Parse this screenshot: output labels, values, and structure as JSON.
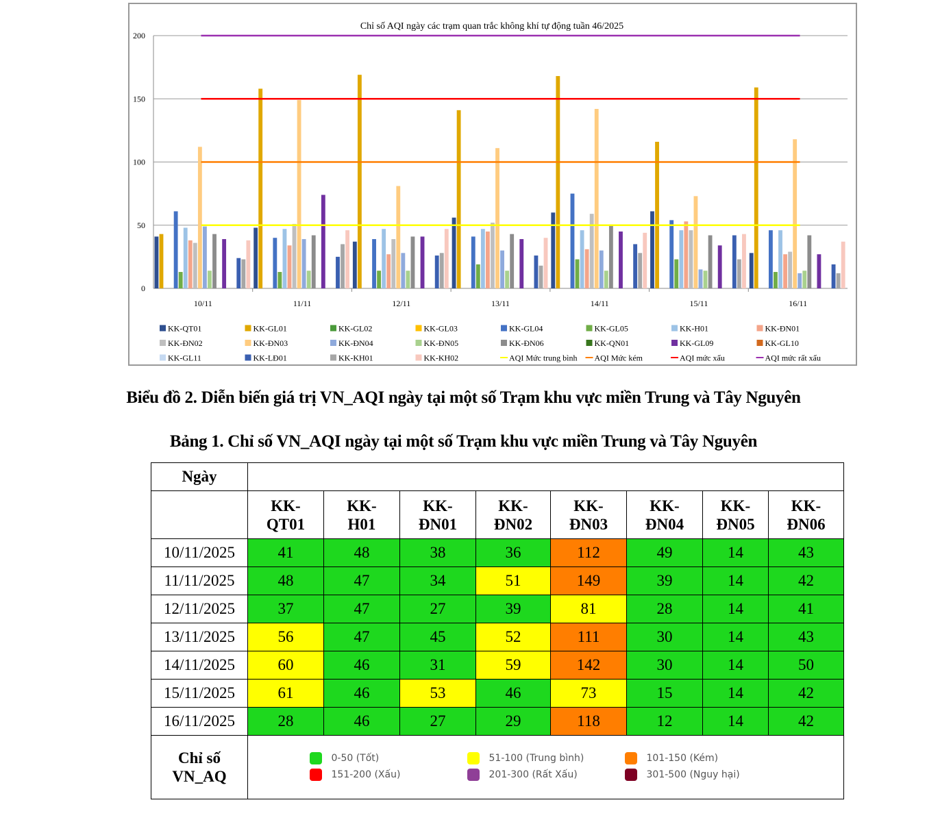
{
  "chart_data": {
    "type": "bar",
    "title": "Chỉ số AQI ngày các trạm quan trắc không khí tự động tuần 46/2025",
    "categories": [
      "10/11",
      "11/11",
      "12/11",
      "13/11",
      "14/11",
      "15/11",
      "16/11"
    ],
    "ylim": [
      0,
      200
    ],
    "yticks": [
      0,
      50,
      100,
      150,
      200
    ],
    "grid": true,
    "legend_position": "bottom",
    "series": [
      {
        "name": "KK-QT01",
        "color": "#2f4f8f",
        "values": [
          41,
          48,
          37,
          56,
          60,
          61,
          28
        ]
      },
      {
        "name": "KK-GL01",
        "color": "#e0a800",
        "values": [
          43,
          158,
          169,
          141,
          168,
          116,
          159
        ]
      },
      {
        "name": "KK-GL02",
        "color": "#4a9a3a",
        "values": [
          null,
          null,
          null,
          null,
          null,
          null,
          null
        ]
      },
      {
        "name": "KK-GL03",
        "color": "#ffc000",
        "values": [
          null,
          null,
          null,
          null,
          null,
          null,
          null
        ]
      },
      {
        "name": "KK-GL04",
        "color": "#4472c4",
        "values": [
          61,
          40,
          39,
          41,
          75,
          54,
          46
        ]
      },
      {
        "name": "KK-GL05",
        "color": "#70ad47",
        "values": [
          13,
          13,
          14,
          19,
          23,
          23,
          13
        ]
      },
      {
        "name": "KK-H01",
        "color": "#9dc3e6",
        "values": [
          48,
          47,
          47,
          47,
          46,
          46,
          46
        ]
      },
      {
        "name": "KK-ĐN01",
        "color": "#f4a58a",
        "values": [
          38,
          34,
          27,
          45,
          31,
          53,
          27
        ]
      },
      {
        "name": "KK-ĐN02",
        "color": "#bfbfbf",
        "values": [
          36,
          51,
          39,
          52,
          59,
          46,
          29
        ]
      },
      {
        "name": "KK-ĐN03",
        "color": "#ffcc80",
        "values": [
          112,
          149,
          81,
          111,
          142,
          73,
          118
        ]
      },
      {
        "name": "KK-ĐN04",
        "color": "#8faadc",
        "values": [
          49,
          39,
          28,
          30,
          30,
          15,
          12
        ]
      },
      {
        "name": "KK-ĐN05",
        "color": "#a9d18e",
        "values": [
          14,
          14,
          14,
          14,
          14,
          14,
          14
        ]
      },
      {
        "name": "KK-ĐN06",
        "color": "#8c8c8c",
        "values": [
          43,
          42,
          41,
          43,
          50,
          42,
          42
        ]
      },
      {
        "name": "KK-QN01",
        "color": "#38761d",
        "values": [
          null,
          null,
          null,
          null,
          null,
          null,
          null
        ]
      },
      {
        "name": "KK-GL09",
        "color": "#7030a0",
        "values": [
          39,
          74,
          41,
          39,
          45,
          34,
          27
        ]
      },
      {
        "name": "KK-GL10",
        "color": "#d2691e",
        "values": [
          null,
          null,
          null,
          null,
          null,
          null,
          null
        ]
      },
      {
        "name": "KK-GL11",
        "color": "#c5d9f1",
        "values": [
          null,
          null,
          null,
          null,
          null,
          null,
          null
        ]
      },
      {
        "name": "KK-LĐ01",
        "color": "#3a5fb0",
        "values": [
          24,
          25,
          26,
          26,
          35,
          42,
          19
        ]
      },
      {
        "name": "KK-KH01",
        "color": "#a6a6a6",
        "values": [
          23,
          35,
          28,
          18,
          28,
          23,
          12
        ]
      },
      {
        "name": "KK-KH02",
        "color": "#f8c8be",
        "values": [
          38,
          46,
          47,
          40,
          44,
          43,
          37
        ]
      }
    ],
    "thresholds": [
      {
        "name": "AQI Mức trung bình",
        "value": 50,
        "color": "#ffff00"
      },
      {
        "name": "AQI Mức kém",
        "value": 100,
        "color": "#ff7f00"
      },
      {
        "name": "AQI mức xấu",
        "value": 150,
        "color": "#ff0000"
      },
      {
        "name": "AQI mức rất xấu",
        "value": 200,
        "color": "#9b30b0"
      }
    ]
  },
  "captions": {
    "figure": "Biểu đồ 2. Diễn biến giá trị VN_AQI ngày tại một số Trạm khu vực miền Trung và Tây Nguyên",
    "table": "Bảng 1. Chỉ số VN_AQI ngày tại một số Trạm khu vực miền Trung và Tây Nguyên"
  },
  "table": {
    "date_header": "Ngày",
    "stations": [
      "KK-\nQT01",
      "KK-\nH01",
      "KK-\nĐN01",
      "KK-\nĐN02",
      "KK-\nĐN03",
      "KK-\nĐN04",
      "KK-\nĐN05",
      "KK-\nĐN06"
    ],
    "rows": [
      {
        "date": "10/11/2025",
        "values": [
          41,
          48,
          38,
          36,
          112,
          49,
          14,
          43
        ]
      },
      {
        "date": "11/11/2025",
        "values": [
          48,
          47,
          34,
          51,
          149,
          39,
          14,
          42
        ]
      },
      {
        "date": "12/11/2025",
        "values": [
          37,
          47,
          27,
          39,
          81,
          28,
          14,
          41
        ]
      },
      {
        "date": "13/11/2025",
        "values": [
          56,
          47,
          45,
          52,
          111,
          30,
          14,
          43
        ]
      },
      {
        "date": "14/11/2025",
        "values": [
          60,
          46,
          31,
          59,
          142,
          30,
          14,
          50
        ]
      },
      {
        "date": "15/11/2025",
        "values": [
          61,
          46,
          53,
          46,
          73,
          15,
          14,
          42
        ]
      },
      {
        "date": "16/11/2025",
        "values": [
          28,
          46,
          27,
          29,
          118,
          12,
          14,
          42
        ]
      }
    ],
    "legend_label": "Chỉ số\nVN_AQ",
    "legend": [
      {
        "label": "0-50 (Tốt)",
        "color": "#1ed81e"
      },
      {
        "label": "51-100 (Trung bình)",
        "color": "#ffff00"
      },
      {
        "label": "101-150 (Kém)",
        "color": "#ff7e00"
      },
      {
        "label": "151-200 (Xấu)",
        "color": "#ff0000"
      },
      {
        "label": "201-300 (Rất Xấu)",
        "color": "#8f3f97"
      },
      {
        "label": "301-500 (Nguy hại)",
        "color": "#7e0023"
      }
    ]
  }
}
